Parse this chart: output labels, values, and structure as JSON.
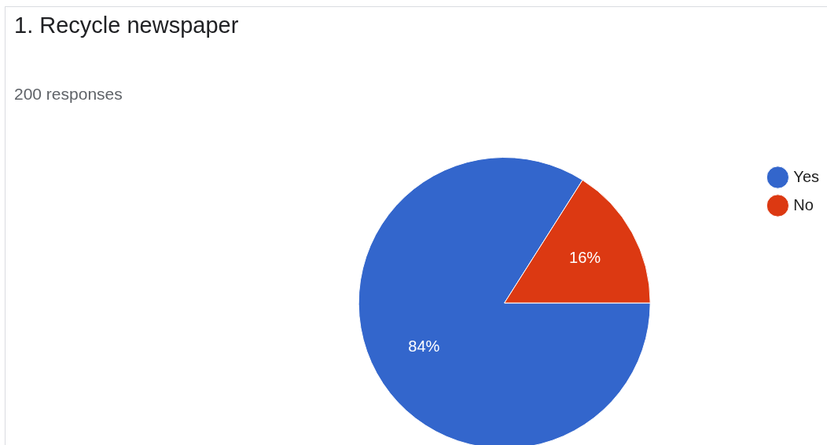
{
  "chart_data": {
    "type": "pie",
    "title": "1. Recycle newspaper",
    "subtitle": "200 responses",
    "categories": [
      "Yes",
      "No"
    ],
    "values": [
      84,
      16
    ],
    "colors": [
      "#3366cc",
      "#dc3912"
    ],
    "value_labels": [
      "84%",
      "16%"
    ],
    "legend": "top right"
  }
}
